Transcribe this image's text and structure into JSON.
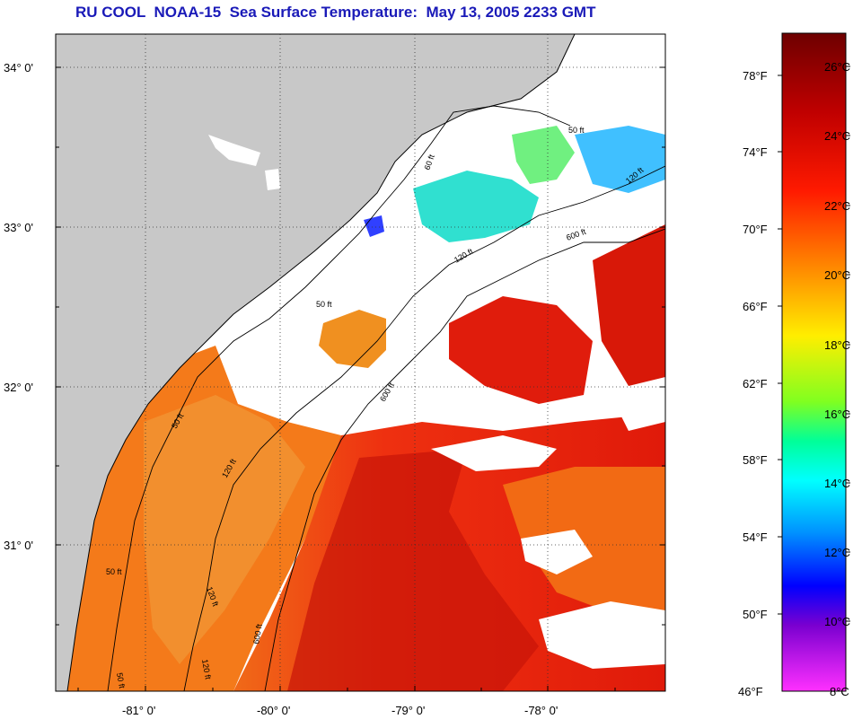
{
  "title": "RU COOL  NOAA-15  Sea Surface Temperature:  May 13, 2005 2233 GMT",
  "map": {
    "lat_labels": [
      "34° 0'",
      "33° 0'",
      "32° 0'",
      "31° 0'"
    ],
    "lon_labels": [
      "-81° 0'",
      "-80° 0'",
      "-79° 0'",
      "-78° 0'"
    ],
    "contour_labels": [
      "50 ft",
      "60 ft",
      "120 ft",
      "600 ft",
      "50 ft",
      "120 ft",
      "600 ft",
      "50 ft",
      "120 ft",
      "50 ft",
      "120 ft",
      "600 ft",
      "50 ft",
      "120 ft"
    ]
  },
  "colorbar": {
    "fahrenheit_labels": [
      "78°F",
      "74°F",
      "70°F",
      "66°F",
      "62°F",
      "58°F",
      "54°F",
      "50°F",
      "46°F"
    ],
    "celsius_labels": [
      "26°C",
      "24°C",
      "22°C",
      "20°C",
      "18°C",
      "16°C",
      "14°C",
      "12°C",
      "10°C",
      "8°C"
    ],
    "colors": [
      "#7a0000",
      "#c00000",
      "#ff0000",
      "#ff6a00",
      "#ffaa00",
      "#ffff00",
      "#9aff00",
      "#00ff80",
      "#00ffff",
      "#0080ff",
      "#0000ff",
      "#7000c0",
      "#ff00ff"
    ]
  },
  "colors": {
    "land": "#c8c8c8",
    "cloud": "#ffffff",
    "title": "#1a1ab8",
    "warm_water": "#e83010",
    "shelf_water": "#f47a1a"
  }
}
